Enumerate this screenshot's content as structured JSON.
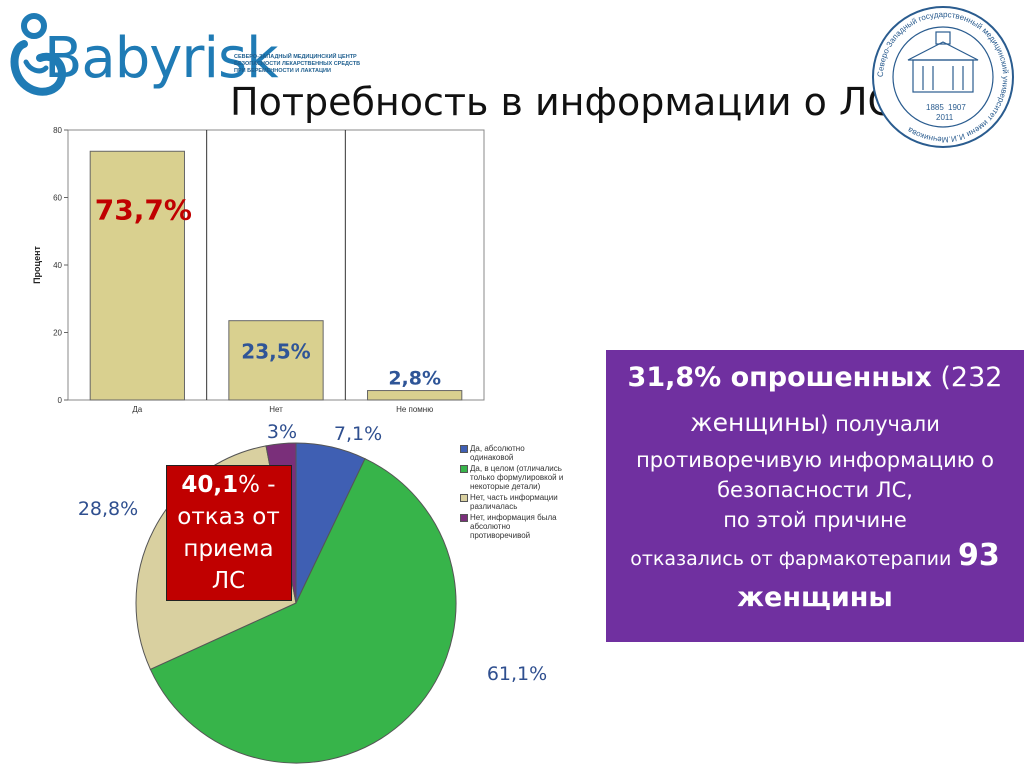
{
  "logo": {
    "wordmark": "Babyrisk",
    "subtitle_lines": [
      "СЕВЕРО-ЗАПАДНЫЙ МЕДИЦИНСКИЙ ЦЕНТР",
      "БЕЗОПАСНОСТИ ЛЕКАРСТВЕННЫХ СРЕДСТВ",
      "ПРИ БЕРЕМЕННОСТИ И ЛАКТАЦИИ"
    ]
  },
  "title": "Потребность в информации о ЛС",
  "seal": {
    "ring_text": "Северо-Западный государственный медицинский университет имени И.И.Мечникова",
    "years": [
      "1885",
      "1907",
      "2011"
    ]
  },
  "colors": {
    "bar_fill": "#d9d08f",
    "pie_blue": "#3f5fb3",
    "pie_green": "#37b44a",
    "pie_tan": "#d9d0a0",
    "pie_purple": "#7a2f7a",
    "purple_box": "#7030a0",
    "red_box": "#c00000",
    "bar_label_red": "#c00000",
    "bar_label_blue": "#2f5597"
  },
  "chart_data": [
    {
      "type": "bar",
      "ylabel": "Процент",
      "ylim": [
        0,
        80
      ],
      "yticks": [
        0,
        20,
        40,
        60,
        80
      ],
      "categories": [
        "Да",
        "Нет",
        "Не помню"
      ],
      "values": [
        73.7,
        23.5,
        2.8
      ],
      "data_labels": [
        "73,7%",
        "23,5%",
        "2,8%"
      ],
      "grid": "vertical"
    },
    {
      "type": "pie",
      "labels": [
        "Да, абсолютно одинаковой",
        "Да, в целом (отличались только формулировкой и некоторые детали)",
        "Нет, часть информации различалась",
        "Нет, информация была абсолютно противоречивой"
      ],
      "legend_lines": [
        [
          "Да, абсолютно",
          "одинаковой"
        ],
        [
          "Да, в целом (отличались",
          "только формулировкой и",
          "некоторые детали)"
        ],
        [
          "Нет, часть информации",
          "различалась"
        ],
        [
          "Нет, информация была",
          "абсолютно",
          "противоречивой"
        ]
      ],
      "values": [
        7.1,
        61.1,
        28.8,
        3
      ],
      "data_labels": [
        "7,1%",
        "61,1%",
        "28,8%",
        "3%"
      ],
      "colors": [
        "#3f5fb3",
        "#37b44a",
        "#d9d0a0",
        "#7a2f7a"
      ],
      "legend_position": "right"
    }
  ],
  "red_box": {
    "lines": [
      "40,1% -",
      "отказ от",
      "приема",
      "ЛС"
    ],
    "bold_part": "40,1"
  },
  "purple_box": {
    "line1_bold": "31,8% опрошенных",
    "line1_rest": " (232",
    "line2_bold": "женщины",
    "line2_rest": ") получали",
    "line3": "противоречивую информацию о",
    "line4": "безопасности ЛС,",
    "line5": "по этой причине",
    "line6_text": "отказались от  фармакотерапии",
    "line6_num": "93",
    "line7": "женщины"
  }
}
